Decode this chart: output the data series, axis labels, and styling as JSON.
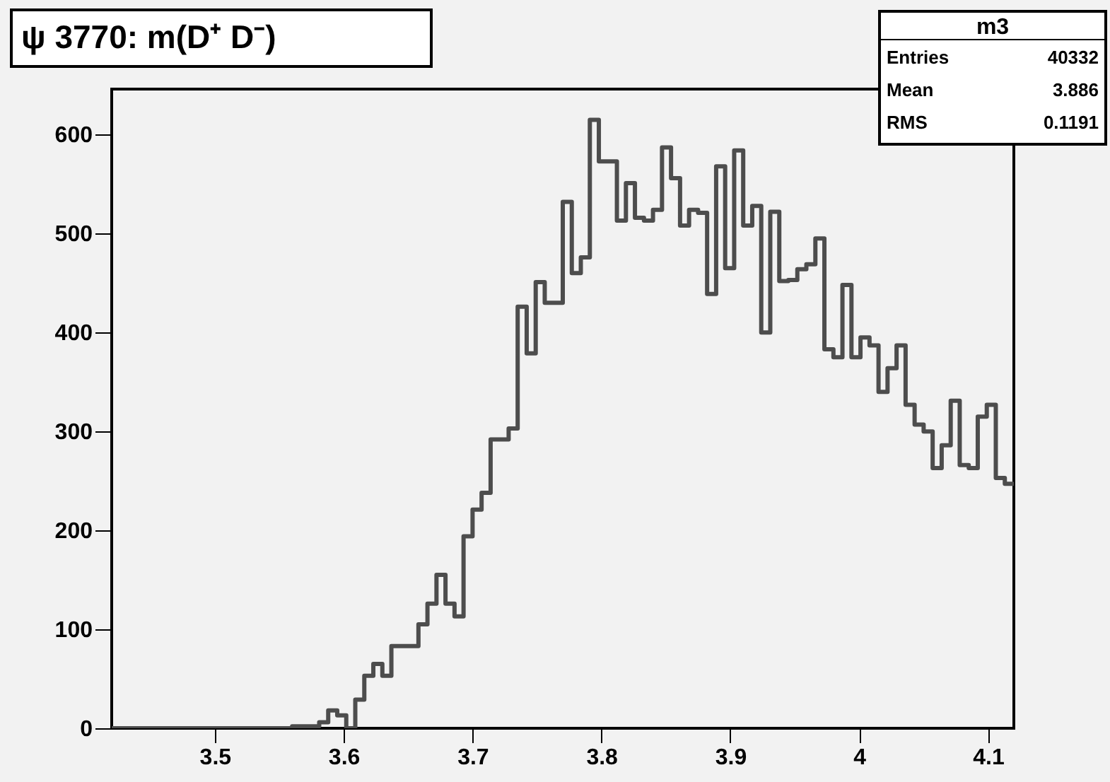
{
  "chart_data": {
    "type": "histogram",
    "title": "ψ 3770: m(D⁺ D⁻)",
    "bins": [
      3.42,
      3.427,
      3.434,
      3.441,
      3.448,
      3.455,
      3.462,
      3.469,
      3.476,
      3.483,
      3.49,
      3.497,
      3.504,
      3.511,
      3.518,
      3.525,
      3.532,
      3.539,
      3.546,
      3.553,
      3.56,
      3.567,
      3.574,
      3.581,
      3.588,
      3.595,
      3.602,
      3.609,
      3.616,
      3.623,
      3.63,
      3.637,
      3.644,
      3.651,
      3.658,
      3.665,
      3.672,
      3.679,
      3.686,
      3.693,
      3.7,
      3.707,
      3.714,
      3.721,
      3.728,
      3.735,
      3.742,
      3.749,
      3.756,
      3.763,
      3.77,
      3.777,
      3.784,
      3.791,
      3.798,
      3.805,
      3.812,
      3.819,
      3.826,
      3.833,
      3.84,
      3.847,
      3.854,
      3.861,
      3.868,
      3.875,
      3.882,
      3.889,
      3.896,
      3.903,
      3.91,
      3.917,
      3.924,
      3.931,
      3.938,
      3.945,
      3.952,
      3.959,
      3.966,
      3.973,
      3.98,
      3.987,
      3.994,
      4.001,
      4.008,
      4.015,
      4.022,
      4.029,
      4.036,
      4.043,
      4.05,
      4.057,
      4.064,
      4.071,
      4.078,
      4.085,
      4.092,
      4.099,
      4.106,
      4.113,
      4.12
    ],
    "values": [
      0,
      0,
      0,
      0,
      0,
      0,
      0,
      0,
      0,
      0,
      0,
      0,
      0,
      0,
      0,
      0,
      0,
      0,
      0,
      0,
      2,
      2,
      2,
      6,
      18,
      13,
      0,
      29,
      53,
      65,
      53,
      83,
      83,
      83,
      105,
      126,
      155,
      126,
      113,
      194,
      221,
      238,
      292,
      292,
      303,
      426,
      379,
      451,
      430,
      430,
      532,
      460,
      476,
      615,
      573,
      573,
      513,
      551,
      516,
      513,
      524,
      587,
      556,
      508,
      524,
      521,
      439,
      568,
      465,
      584,
      508,
      528,
      400,
      522,
      452,
      453,
      464,
      469,
      495,
      383,
      375,
      448,
      375,
      395,
      387,
      340,
      364,
      387,
      327,
      307,
      300,
      263,
      286,
      331,
      266,
      263,
      315,
      327,
      253,
      247
    ],
    "color": "#4d4d4d",
    "xlim": [
      3.42,
      4.12
    ],
    "ylim": [
      0,
      646
    ],
    "xticks": [
      3.5,
      3.6,
      3.7,
      3.8,
      3.9,
      4,
      4.1
    ],
    "yticks": [
      0,
      100,
      200,
      300,
      400,
      500,
      600
    ],
    "grid": false,
    "annotations": [
      "m3",
      "Entries 40332",
      "Mean 3.886",
      "RMS 0.1191"
    ]
  }
}
